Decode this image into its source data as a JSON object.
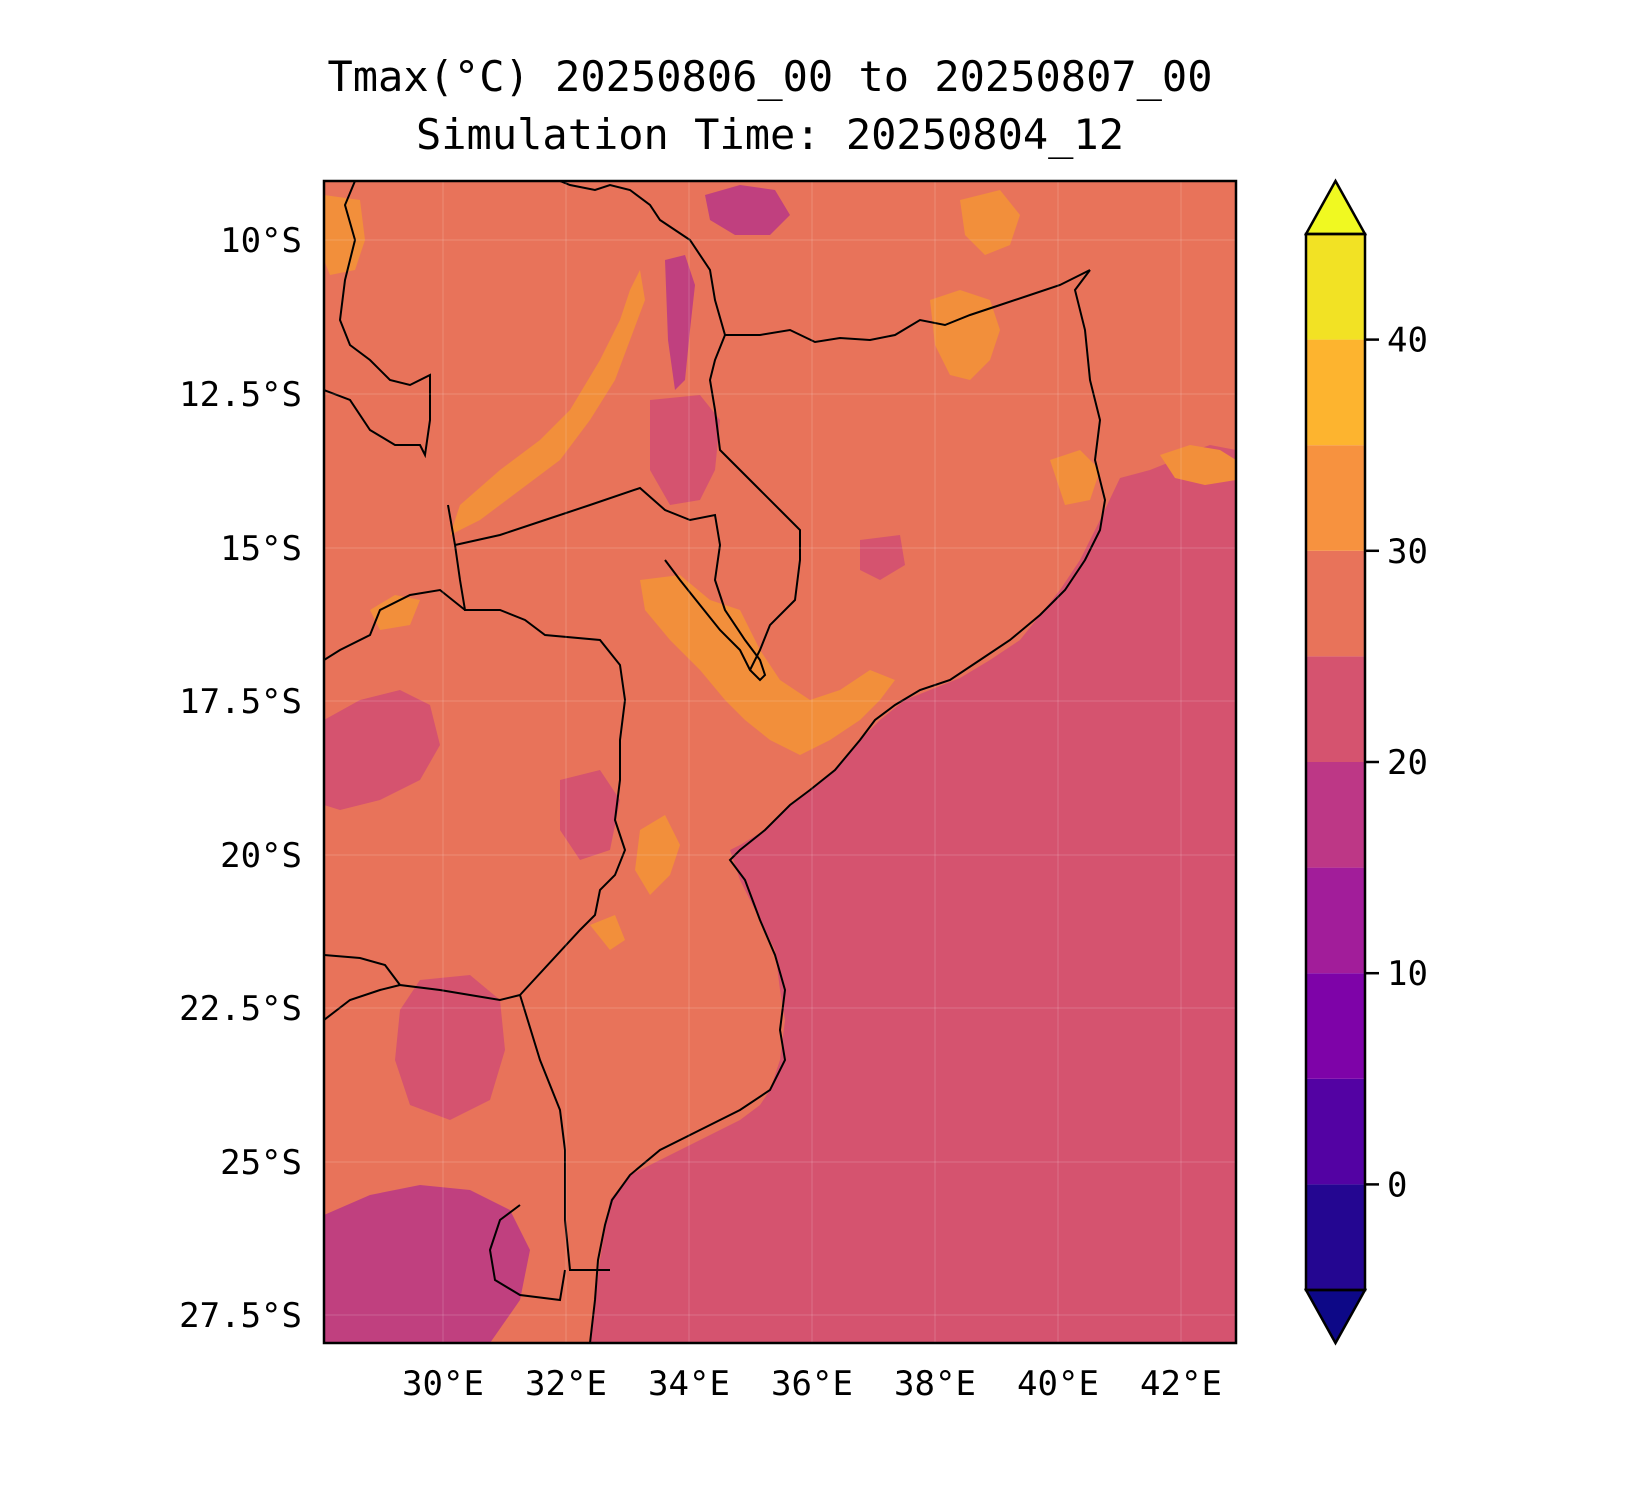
{
  "title": {
    "line1": "Tmax(°C) 20250806_00 to 20250807_00",
    "line2": "Simulation Time: 20250804_12"
  },
  "map": {
    "lon_ticks": [
      "30°E",
      "32°E",
      "34°E",
      "36°E",
      "38°E",
      "40°E",
      "42°E"
    ],
    "lat_ticks": [
      "10°S",
      "12.5°S",
      "15°S",
      "17.5°S",
      "20°S",
      "22.5°S",
      "25°S",
      "27.5°S"
    ],
    "ocean_color": "#d5536f",
    "land_color": "#e8735a",
    "warm_color": "#f28f3b",
    "cool_color": "#b83a8c"
  },
  "colorbar": {
    "ticks": [
      "0",
      "10",
      "20",
      "30",
      "40"
    ],
    "levels": [
      {
        "from": -5,
        "to": 0,
        "color": "#240691"
      },
      {
        "from": 0,
        "to": 5,
        "color": "#5302a3"
      },
      {
        "from": 5,
        "to": 10,
        "color": "#7e03a8"
      },
      {
        "from": 10,
        "to": 15,
        "color": "#a21d9a"
      },
      {
        "from": 15,
        "to": 20,
        "color": "#bd3786"
      },
      {
        "from": 20,
        "to": 25,
        "color": "#d5536f"
      },
      {
        "from": 25,
        "to": 30,
        "color": "#e8735a"
      },
      {
        "from": 30,
        "to": 35,
        "color": "#f7923f"
      },
      {
        "from": 35,
        "to": 40,
        "color": "#fdb42f"
      },
      {
        "from": 40,
        "to": 45,
        "color": "#f2e224"
      }
    ],
    "under_color": "#0d0887",
    "over_color": "#f0f921"
  }
}
